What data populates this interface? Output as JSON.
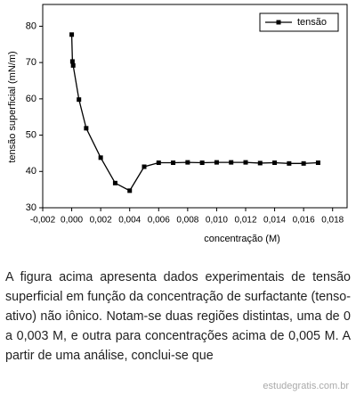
{
  "chart_data": {
    "type": "line",
    "x_label": "concentração (M)",
    "y_label": "tensão superficial (mN/m)",
    "x": [
      0,
      5e-05,
      0.0001,
      0.0005,
      0.001,
      0.002,
      0.003,
      0.004,
      0.005,
      0.006,
      0.007,
      0.008,
      0.009,
      0.01,
      0.011,
      0.012,
      0.013,
      0.014,
      0.015,
      0.016,
      0.017
    ],
    "series": [
      {
        "name": "tensão",
        "color": "#000000",
        "values": [
          77.7,
          70.3,
          69.2,
          59.8,
          51.9,
          43.8,
          36.8,
          34.7,
          41.3,
          42.4,
          42.4,
          42.5,
          42.4,
          42.5,
          42.5,
          42.5,
          42.3,
          42.4,
          42.2,
          42.2,
          42.4
        ]
      }
    ],
    "xlim": [
      -0.002,
      0.019
    ],
    "ylim": [
      30,
      86
    ],
    "xticks": [
      {
        "value": -0.002,
        "label": "-0,002"
      },
      {
        "value": 0,
        "label": "0,000"
      },
      {
        "value": 0.002,
        "label": "0,002"
      },
      {
        "value": 0.004,
        "label": "0,004"
      },
      {
        "value": 0.006,
        "label": "0,006"
      },
      {
        "value": 0.008,
        "label": "0,008"
      },
      {
        "value": 0.01,
        "label": "0,010"
      },
      {
        "value": 0.012,
        "label": "0,012"
      },
      {
        "value": 0.014,
        "label": "0,014"
      },
      {
        "value": 0.016,
        "label": "0,016"
      },
      {
        "value": 0.018,
        "label": "0,018"
      }
    ],
    "yticks": [
      30,
      40,
      50,
      60,
      70,
      80
    ],
    "legend": "upper right"
  },
  "text": "A figura acima apresenta dados experimentais de tensão superficial em função da concentração de surfactante (tenso-ativo) não iônico. Notam-se duas regiões distintas, uma de 0 a 0,003 M, e outra para concentrações acima de 0,005 M. A partir de uma análise, conclui-se que",
  "watermark": "estudegratis.com.br"
}
